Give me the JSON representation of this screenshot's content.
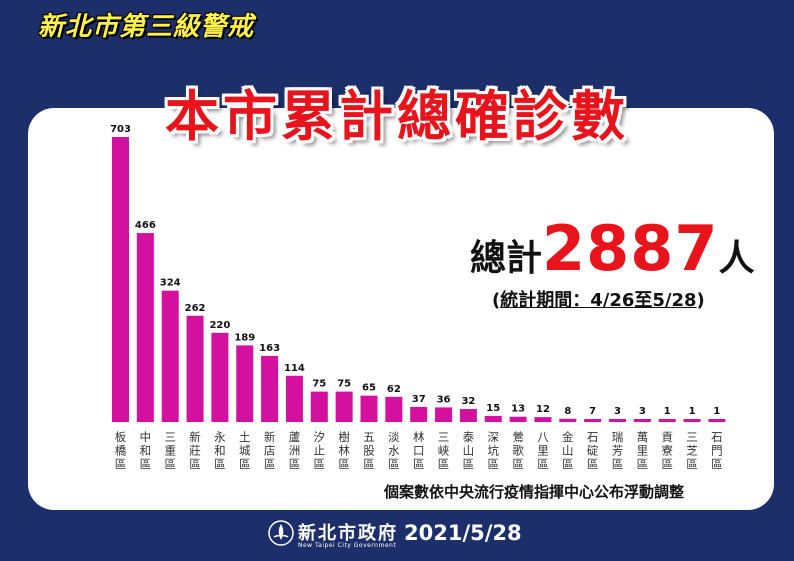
{
  "header": {
    "campaign_title": "新北市第三級警戒"
  },
  "chart_data": {
    "type": "bar",
    "title": "本市累計總確診數",
    "categories": [
      "板橋區",
      "中和區",
      "三重區",
      "新莊區",
      "永和區",
      "土城區",
      "新店區",
      "蘆洲區",
      "汐止區",
      "樹林區",
      "五股區",
      "淡水區",
      "林口區",
      "三峽區",
      "泰山區",
      "深坑區",
      "鶯歌區",
      "八里區",
      "金山區",
      "石碇區",
      "瑞芳區",
      "萬里區",
      "貢寮區",
      "三芝區",
      "石門區"
    ],
    "values": [
      703,
      466,
      324,
      262,
      220,
      189,
      163,
      114,
      75,
      75,
      65,
      62,
      37,
      36,
      32,
      15,
      13,
      12,
      8,
      7,
      3,
      3,
      1,
      1,
      1
    ],
    "bar_color": "#d4119f",
    "ylim": [
      0,
      703
    ],
    "grid": false,
    "legend": "none"
  },
  "summary": {
    "total_label": "總計",
    "total_value": "2887",
    "total_unit": "人",
    "period_open": "(",
    "period_text": "統計期間：4/26至5/28",
    "period_close": ")"
  },
  "note": "個案數依中央流行疫情指揮中心公布浮動調整",
  "footer": {
    "agency": "新北市政府",
    "agency_en": "New Taipei City Government",
    "date": "2021/5/28"
  },
  "colors": {
    "background": "#1c2f6b",
    "title_red": "#e8131b",
    "header_yellow": "#fff24a",
    "bar": "#d4119f"
  }
}
